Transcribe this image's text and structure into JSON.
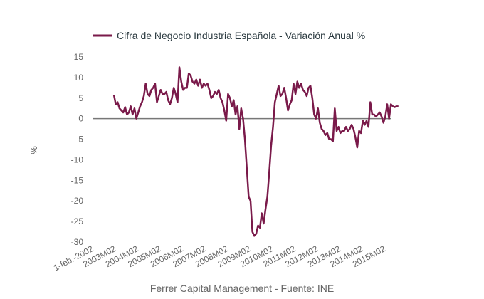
{
  "chart_data": {
    "type": "line",
    "title": "",
    "legend": {
      "position": "top",
      "entries": [
        "Cifra de Negocio Industria Española - Variación Anual %"
      ]
    },
    "xlabel": "",
    "ylabel": "%",
    "ylim": [
      -30,
      15
    ],
    "yticks": [
      15,
      10,
      5,
      0,
      -5,
      -10,
      -15,
      -20,
      -25,
      -30
    ],
    "xtick_labels": [
      "1-feb.-2002",
      "2003M02",
      "2004M02",
      "2005M02",
      "2006M02",
      "2007M02",
      "2008M02",
      "2009M02",
      "2010M02",
      "2011M02",
      "2012M02",
      "2013M02",
      "2014M02",
      "2015M02"
    ],
    "x_start": "2003-01",
    "x_frequency": "monthly",
    "grid": false,
    "zero_line": true,
    "series": [
      {
        "name": "Cifra de Negocio Industria Española - Variación Anual %",
        "color": "#7a1a4a",
        "values": [
          5.8,
          3.5,
          4.0,
          2.5,
          2.0,
          1.5,
          2.8,
          1.0,
          1.5,
          3.0,
          1.0,
          2.5,
          0.0,
          1.5,
          3.0,
          4.0,
          5.5,
          8.5,
          6.0,
          5.5,
          7.0,
          7.5,
          8.5,
          4.0,
          5.5,
          7.0,
          6.0,
          6.0,
          6.5,
          4.5,
          3.5,
          5.0,
          7.5,
          6.0,
          4.0,
          12.5,
          9.0,
          7.0,
          7.5,
          7.5,
          11.0,
          10.5,
          9.0,
          8.5,
          9.5,
          8.0,
          9.5,
          7.5,
          8.5,
          8.0,
          8.5,
          7.0,
          5.0,
          5.5,
          6.5,
          6.0,
          7.0,
          5.0,
          4.0,
          2.0,
          -0.5,
          6.0,
          5.0,
          3.0,
          4.5,
          1.0,
          3.0,
          -2.5,
          2.5,
          0.0,
          -5.0,
          -12.0,
          -19.0,
          -20.0,
          -27.5,
          -28.5,
          -28.0,
          -26.0,
          -26.5,
          -23.0,
          -25.5,
          -22.0,
          -19.0,
          -13.0,
          -6.5,
          -2.0,
          4.0,
          6.0,
          8.0,
          5.5,
          6.0,
          7.5,
          5.0,
          2.0,
          3.5,
          4.5,
          8.5,
          6.0,
          9.0,
          7.5,
          8.5,
          7.0,
          6.5,
          5.5,
          7.5,
          8.0,
          5.0,
          1.0,
          0.0,
          2.5,
          -1.0,
          -2.5,
          -3.0,
          -4.0,
          -3.5,
          -5.0,
          -5.0,
          -5.5,
          2.5,
          -3.0,
          -2.0,
          -3.5,
          -3.0,
          -3.0,
          -2.0,
          -3.0,
          -2.5,
          -1.5,
          -2.5,
          -4.5,
          -7.0,
          -3.0,
          -3.5,
          -0.5,
          -1.5,
          -0.5,
          -2.0,
          4.0,
          1.0,
          1.0,
          0.5,
          1.0,
          1.5,
          0.5,
          -1.0,
          0.5,
          3.5,
          0.0,
          3.5,
          3.0,
          2.8,
          3.0,
          3.0
        ]
      }
    ]
  },
  "footer": "Ferrer Capital Management - Fuente: INE"
}
